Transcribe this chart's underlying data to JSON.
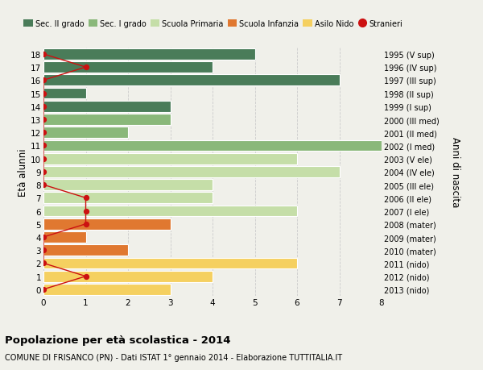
{
  "ages": [
    18,
    17,
    16,
    15,
    14,
    13,
    12,
    11,
    10,
    9,
    8,
    7,
    6,
    5,
    4,
    3,
    2,
    1,
    0
  ],
  "right_labels": [
    "1995 (V sup)",
    "1996 (IV sup)",
    "1997 (III sup)",
    "1998 (II sup)",
    "1999 (I sup)",
    "2000 (III med)",
    "2001 (II med)",
    "2002 (I med)",
    "2003 (V ele)",
    "2004 (IV ele)",
    "2005 (III ele)",
    "2006 (II ele)",
    "2007 (I ele)",
    "2008 (mater)",
    "2009 (mater)",
    "2010 (mater)",
    "2011 (nido)",
    "2012 (nido)",
    "2013 (nido)"
  ],
  "bar_values": [
    5,
    4,
    7,
    1,
    3,
    3,
    2,
    8,
    6,
    7,
    4,
    4,
    6,
    3,
    1,
    2,
    6,
    4,
    3
  ],
  "bar_colors": [
    "#4a7c59",
    "#4a7c59",
    "#4a7c59",
    "#4a7c59",
    "#4a7c59",
    "#8ab87a",
    "#8ab87a",
    "#8ab87a",
    "#c5dea8",
    "#c5dea8",
    "#c5dea8",
    "#c5dea8",
    "#c5dea8",
    "#e07830",
    "#e07830",
    "#e07830",
    "#f5d060",
    "#f5d060",
    "#f5d060"
  ],
  "stranieri_values": [
    0,
    1,
    0,
    0,
    0,
    0,
    0,
    0,
    0,
    0,
    0,
    1,
    1,
    1,
    0,
    0,
    0,
    1,
    0
  ],
  "legend_labels": [
    "Sec. II grado",
    "Sec. I grado",
    "Scuola Primaria",
    "Scuola Infanzia",
    "Asilo Nido",
    "Stranieri"
  ],
  "legend_colors": [
    "#4a7c59",
    "#8ab87a",
    "#c5dea8",
    "#e07830",
    "#f5d060",
    "#cc1111"
  ],
  "ylabel": "Età alunni",
  "right_ylabel": "Anni di nascita",
  "title": "Popolazione per età scolastica - 2014",
  "subtitle": "COMUNE DI FRISANCO (PN) - Dati ISTAT 1° gennaio 2014 - Elaborazione TUTTITALIA.IT",
  "xlim": [
    0,
    8
  ],
  "background_color": "#f0f0ea",
  "bar_edge_color": "#ffffff",
  "grid_color": "#cccccc"
}
